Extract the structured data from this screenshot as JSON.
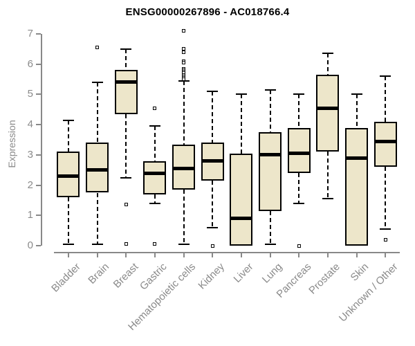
{
  "title": "ENSG00000267896 - AC018766.4",
  "y_axis": {
    "label": "Expression",
    "ticks": [
      "0",
      "1",
      "2",
      "3",
      "4",
      "5",
      "6",
      "7"
    ]
  },
  "chart_data": {
    "type": "boxplot",
    "title": "ENSG00000267896 - AC018766.4",
    "xlabel": "",
    "ylabel": "Expression",
    "ylim": [
      0,
      7
    ],
    "yticks": [
      0,
      1,
      2,
      3,
      4,
      5,
      6,
      7
    ],
    "grid": false,
    "legend_position": "none",
    "colors": {
      "box_fill": "#ede6ca",
      "box_line": "#000000",
      "axis": "#888888",
      "tick_text": "#8a8a8a",
      "title_text": "#000000"
    },
    "categories": [
      "Bladder",
      "Brain",
      "Breast",
      "Gastric",
      "Hematopoietic cells",
      "Kidney",
      "Liver",
      "Lung",
      "Pancreas",
      "Prostate",
      "Skin",
      "Unknown / Other"
    ],
    "boxes": [
      {
        "category": "Bladder",
        "low": 0.05,
        "q1": 1.6,
        "median": 2.3,
        "q3": 3.1,
        "high": 4.15,
        "outliers": []
      },
      {
        "category": "Brain",
        "low": 0.05,
        "q1": 1.75,
        "median": 2.5,
        "q3": 3.4,
        "high": 5.4,
        "outliers": [
          6.55
        ]
      },
      {
        "category": "Breast",
        "low": 2.25,
        "q1": 4.35,
        "median": 5.4,
        "q3": 5.8,
        "high": 6.5,
        "outliers": [
          1.35,
          0.05
        ]
      },
      {
        "category": "Gastric",
        "low": 1.4,
        "q1": 1.7,
        "median": 2.4,
        "q3": 2.8,
        "high": 3.95,
        "outliers": [
          4.55,
          0.05
        ]
      },
      {
        "category": "Hematopoietic cells",
        "low": 0.05,
        "q1": 1.85,
        "median": 2.55,
        "q3": 3.35,
        "high": 5.45,
        "outliers": [
          7.1,
          6.5,
          6.4,
          6.1,
          6.05,
          5.85,
          5.8,
          5.75,
          5.7,
          5.65,
          5.6,
          5.55,
          5.5
        ]
      },
      {
        "category": "Kidney",
        "low": 0.6,
        "q1": 2.15,
        "median": 2.8,
        "q3": 3.4,
        "high": 5.1,
        "outliers": [
          0.0
        ]
      },
      {
        "category": "Liver",
        "low": 0.0,
        "q1": 0.0,
        "median": 0.9,
        "q3": 3.05,
        "high": 5.0,
        "outliers": []
      },
      {
        "category": "Lung",
        "low": 0.05,
        "q1": 1.15,
        "median": 3.0,
        "q3": 3.75,
        "high": 5.15,
        "outliers": []
      },
      {
        "category": "Pancreas",
        "low": 1.4,
        "q1": 2.4,
        "median": 3.05,
        "q3": 3.9,
        "high": 5.0,
        "outliers": [
          0.0
        ]
      },
      {
        "category": "Prostate",
        "low": 1.55,
        "q1": 3.1,
        "median": 4.55,
        "q3": 5.65,
        "high": 6.35,
        "outliers": []
      },
      {
        "category": "Skin",
        "low": 0.0,
        "q1": 0.0,
        "median": 2.9,
        "q3": 3.9,
        "high": 5.0,
        "outliers": []
      },
      {
        "category": "Unknown / Other",
        "low": 0.55,
        "q1": 2.6,
        "median": 3.45,
        "q3": 4.1,
        "high": 5.6,
        "outliers": [
          0.2
        ]
      }
    ]
  }
}
